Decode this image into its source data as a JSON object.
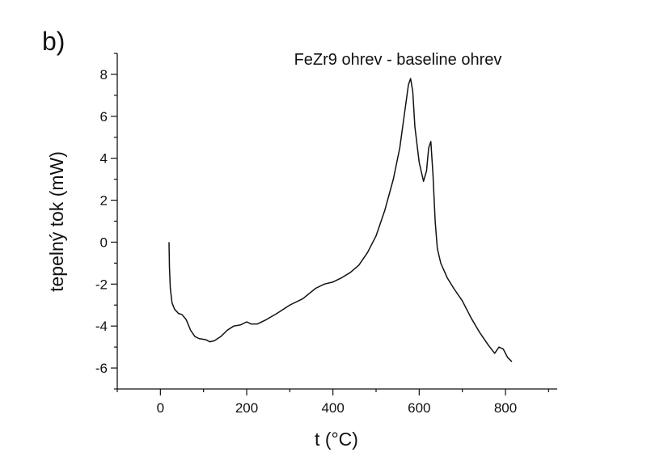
{
  "panel_label": "b)",
  "chart_data": {
    "type": "line",
    "title": "FeZr9 ohrev - baseline ohrev",
    "xlabel": "t (°C)",
    "ylabel": "tepelný tok (mW)",
    "xlim": [
      -100,
      920
    ],
    "ylim": [
      -7,
      9
    ],
    "xticks": [
      0,
      200,
      400,
      600,
      800
    ],
    "yticks": [
      -6,
      -4,
      -2,
      0,
      2,
      4,
      6,
      8
    ],
    "grid": false,
    "series": [
      {
        "x": [
          20,
          21,
          23,
          27,
          33,
          42,
          50,
          60,
          70,
          80,
          90,
          105,
          115,
          125,
          140,
          155,
          170,
          185,
          200,
          210,
          225,
          245,
          270,
          300,
          330,
          360,
          380,
          400,
          420,
          440,
          460,
          480,
          500,
          520,
          540,
          555,
          565,
          575,
          580,
          585,
          590,
          600,
          610,
          617,
          622,
          627,
          632,
          637,
          642,
          650,
          665,
          680,
          700,
          720,
          740,
          760,
          775,
          785,
          795,
          805,
          815
        ],
        "values": [
          0.0,
          -1.2,
          -2.2,
          -2.9,
          -3.2,
          -3.4,
          -3.45,
          -3.7,
          -4.2,
          -4.5,
          -4.6,
          -4.65,
          -4.75,
          -4.7,
          -4.5,
          -4.2,
          -4.0,
          -3.95,
          -3.8,
          -3.9,
          -3.9,
          -3.7,
          -3.4,
          -3.0,
          -2.7,
          -2.2,
          -2.0,
          -1.9,
          -1.7,
          -1.45,
          -1.1,
          -0.5,
          0.3,
          1.5,
          3.0,
          4.5,
          6.0,
          7.5,
          7.8,
          7.2,
          5.5,
          3.8,
          2.9,
          3.4,
          4.5,
          4.8,
          3.2,
          1.0,
          -0.3,
          -1.0,
          -1.7,
          -2.2,
          -2.8,
          -3.6,
          -4.3,
          -4.9,
          -5.3,
          -5.0,
          -5.1,
          -5.5,
          -5.7
        ]
      }
    ]
  }
}
